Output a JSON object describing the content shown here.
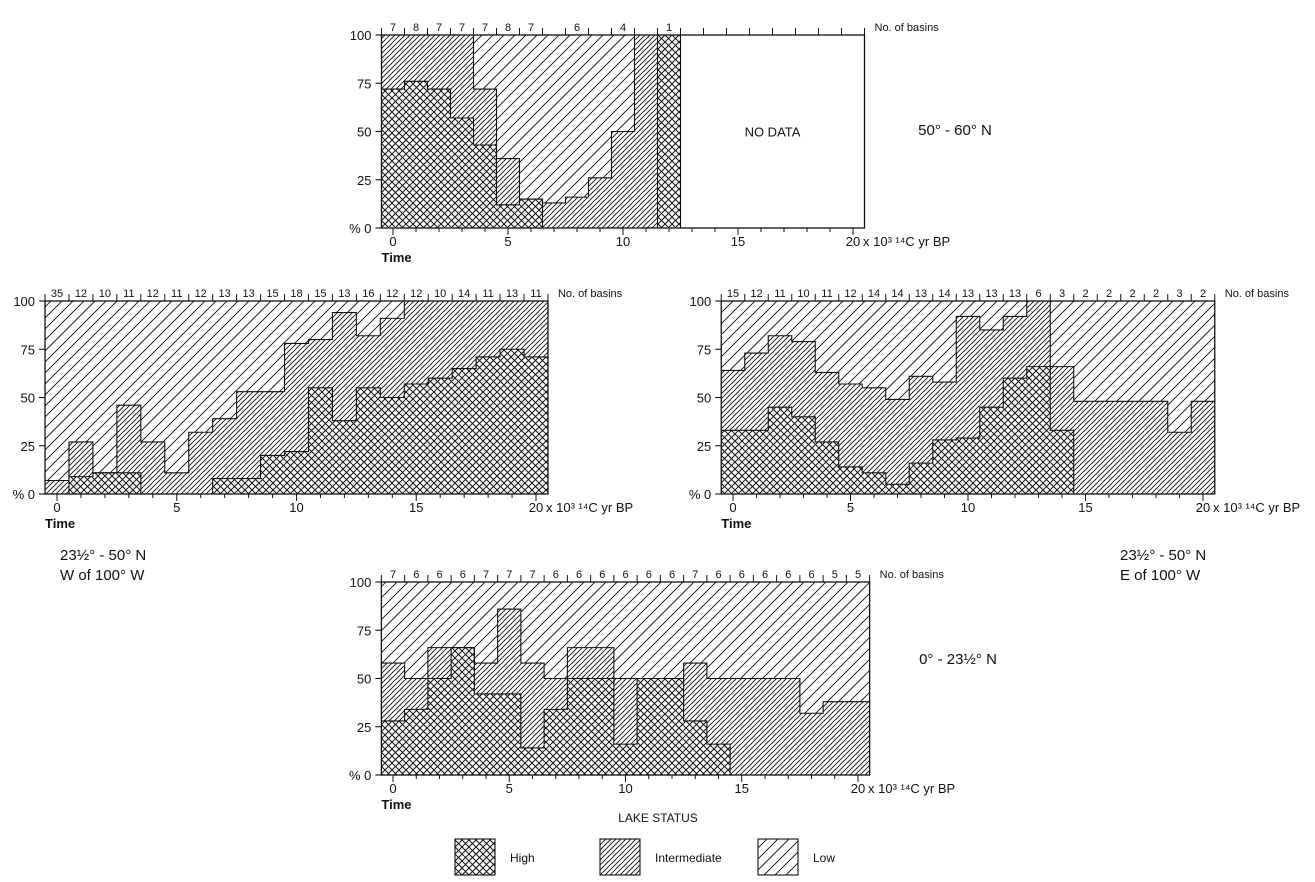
{
  "legend": {
    "title": "LAKE STATUS",
    "items": [
      {
        "name": "High",
        "pattern": "high"
      },
      {
        "name": "Intermediate",
        "pattern": "intermediate"
      },
      {
        "name": "Low",
        "pattern": "low"
      }
    ]
  },
  "chart_data": [
    {
      "type": "area",
      "region_lines": [
        "50° - 60° N"
      ],
      "top_label": "No. of basins",
      "x_unit_label": "x 10³ ¹⁴C yr BP",
      "time_label": "Time",
      "xlim": [
        0,
        20
      ],
      "ylim": [
        0,
        100
      ],
      "x_ticks": [
        0,
        5,
        10,
        15,
        20
      ],
      "y_ticks": [
        0,
        25,
        50,
        75,
        100
      ],
      "y_tick_labels": [
        "% 0",
        "25",
        "50",
        "75",
        "100"
      ],
      "no_data": {
        "from": 12.5,
        "to": 20,
        "label": "NO DATA"
      },
      "bins": [
        {
          "x0": -0.5,
          "x1": 0.5,
          "high": 72,
          "high_plus_int": 100,
          "basins": "7"
        },
        {
          "x0": 0.5,
          "x1": 1.5,
          "high": 76,
          "high_plus_int": 100,
          "basins": "8"
        },
        {
          "x0": 1.5,
          "x1": 2.5,
          "high": 72,
          "high_plus_int": 100,
          "basins": "7"
        },
        {
          "x0": 2.5,
          "x1": 3.5,
          "high": 57,
          "high_plus_int": 100,
          "basins": "7"
        },
        {
          "x0": 3.5,
          "x1": 4.5,
          "high": 43,
          "high_plus_int": 72,
          "basins": "7"
        },
        {
          "x0": 4.5,
          "x1": 5.5,
          "high": 12,
          "high_plus_int": 36,
          "basins": "8"
        },
        {
          "x0": 5.5,
          "x1": 6.5,
          "high": 15,
          "high_plus_int": 15,
          "basins": "7"
        },
        {
          "x0": 6.5,
          "x1": 7.5,
          "high": 0,
          "high_plus_int": 13,
          "basins": ""
        },
        {
          "x0": 7.5,
          "x1": 8.5,
          "high": 0,
          "high_plus_int": 16,
          "basins": "6"
        },
        {
          "x0": 8.5,
          "x1": 9.5,
          "high": 0,
          "high_plus_int": 26,
          "basins": ""
        },
        {
          "x0": 9.5,
          "x1": 10.5,
          "high": 0,
          "high_plus_int": 50,
          "basins": "4"
        },
        {
          "x0": 10.5,
          "x1": 11.5,
          "high": 0,
          "high_plus_int": 100,
          "basins": ""
        },
        {
          "x0": 11.5,
          "x1": 12.5,
          "high": 100,
          "high_plus_int": 100,
          "basins": "1"
        }
      ]
    },
    {
      "type": "area",
      "region_lines": [
        "23½° - 50° N",
        "W of 100° W"
      ],
      "top_label": "No. of basins",
      "x_unit_label": "x 10³ ¹⁴C yr BP",
      "time_label": "Time",
      "xlim": [
        0,
        20
      ],
      "ylim": [
        0,
        100
      ],
      "x_ticks": [
        0,
        5,
        10,
        15,
        20
      ],
      "y_ticks": [
        0,
        25,
        50,
        75,
        100
      ],
      "y_tick_labels": [
        "% 0",
        "25",
        "50",
        "75",
        "100"
      ],
      "bins": [
        {
          "x0": -0.5,
          "x1": 0.5,
          "high": 0,
          "high_plus_int": 7,
          "basins": "35"
        },
        {
          "x0": 0.5,
          "x1": 1.5,
          "high": 9,
          "high_plus_int": 27,
          "basins": "12"
        },
        {
          "x0": 1.5,
          "x1": 2.5,
          "high": 11,
          "high_plus_int": 11,
          "basins": "10"
        },
        {
          "x0": 2.5,
          "x1": 3.5,
          "high": 11,
          "high_plus_int": 46,
          "basins": "11"
        },
        {
          "x0": 3.5,
          "x1": 4.5,
          "high": 0,
          "high_plus_int": 27,
          "basins": "12"
        },
        {
          "x0": 4.5,
          "x1": 5.5,
          "high": 0,
          "high_plus_int": 11,
          "basins": "11"
        },
        {
          "x0": 5.5,
          "x1": 6.5,
          "high": 0,
          "high_plus_int": 32,
          "basins": "12"
        },
        {
          "x0": 6.5,
          "x1": 7.5,
          "high": 8,
          "high_plus_int": 39,
          "basins": "13"
        },
        {
          "x0": 7.5,
          "x1": 8.5,
          "high": 8,
          "high_plus_int": 53,
          "basins": "13"
        },
        {
          "x0": 8.5,
          "x1": 9.5,
          "high": 20,
          "high_plus_int": 53,
          "basins": "15"
        },
        {
          "x0": 9.5,
          "x1": 10.5,
          "high": 22,
          "high_plus_int": 78,
          "basins": "18"
        },
        {
          "x0": 10.5,
          "x1": 11.5,
          "high": 55,
          "high_plus_int": 80,
          "basins": "15"
        },
        {
          "x0": 11.5,
          "x1": 12.5,
          "high": 38,
          "high_plus_int": 94,
          "basins": "13"
        },
        {
          "x0": 12.5,
          "x1": 13.5,
          "high": 55,
          "high_plus_int": 82,
          "basins": "16"
        },
        {
          "x0": 13.5,
          "x1": 14.5,
          "high": 50,
          "high_plus_int": 91,
          "basins": "12"
        },
        {
          "x0": 14.5,
          "x1": 15.5,
          "high": 57,
          "high_plus_int": 100,
          "basins": "12"
        },
        {
          "x0": 15.5,
          "x1": 16.5,
          "high": 60,
          "high_plus_int": 100,
          "basins": "10"
        },
        {
          "x0": 16.5,
          "x1": 17.5,
          "high": 65,
          "high_plus_int": 100,
          "basins": "14"
        },
        {
          "x0": 17.5,
          "x1": 18.5,
          "high": 71,
          "high_plus_int": 100,
          "basins": "11"
        },
        {
          "x0": 18.5,
          "x1": 19.5,
          "high": 75,
          "high_plus_int": 100,
          "basins": "13"
        },
        {
          "x0": 19.5,
          "x1": 20.5,
          "high": 71,
          "high_plus_int": 100,
          "basins": "11"
        }
      ]
    },
    {
      "type": "area",
      "region_lines": [
        "23½° - 50° N",
        "E of 100° W"
      ],
      "top_label": "No. of basins",
      "x_unit_label": "x 10³ ¹⁴C yr BP",
      "time_label": "Time",
      "xlim": [
        0,
        20
      ],
      "ylim": [
        0,
        100
      ],
      "x_ticks": [
        0,
        5,
        10,
        15,
        20
      ],
      "y_ticks": [
        0,
        25,
        50,
        75,
        100
      ],
      "y_tick_labels": [
        "% 0",
        "25",
        "50",
        "75",
        "100"
      ],
      "bins": [
        {
          "x0": -0.5,
          "x1": 0.5,
          "high": 33,
          "high_plus_int": 64,
          "basins": "15"
        },
        {
          "x0": 0.5,
          "x1": 1.5,
          "high": 33,
          "high_plus_int": 73,
          "basins": "12"
        },
        {
          "x0": 1.5,
          "x1": 2.5,
          "high": 45,
          "high_plus_int": 82,
          "basins": "11"
        },
        {
          "x0": 2.5,
          "x1": 3.5,
          "high": 40,
          "high_plus_int": 79,
          "basins": "10"
        },
        {
          "x0": 3.5,
          "x1": 4.5,
          "high": 27,
          "high_plus_int": 63,
          "basins": "11"
        },
        {
          "x0": 4.5,
          "x1": 5.5,
          "high": 14,
          "high_plus_int": 57,
          "basins": "12"
        },
        {
          "x0": 5.5,
          "x1": 6.5,
          "high": 11,
          "high_plus_int": 55,
          "basins": "14"
        },
        {
          "x0": 6.5,
          "x1": 7.5,
          "high": 5,
          "high_plus_int": 49,
          "basins": "14"
        },
        {
          "x0": 7.5,
          "x1": 8.5,
          "high": 16,
          "high_plus_int": 61,
          "basins": "13"
        },
        {
          "x0": 8.5,
          "x1": 9.5,
          "high": 28,
          "high_plus_int": 58,
          "basins": "14"
        },
        {
          "x0": 9.5,
          "x1": 10.5,
          "high": 29,
          "high_plus_int": 92,
          "basins": "13"
        },
        {
          "x0": 10.5,
          "x1": 11.5,
          "high": 45,
          "high_plus_int": 85,
          "basins": "13"
        },
        {
          "x0": 11.5,
          "x1": 12.5,
          "high": 60,
          "high_plus_int": 92,
          "basins": "13"
        },
        {
          "x0": 12.5,
          "x1": 13.5,
          "high": 66,
          "high_plus_int": 100,
          "basins": "6"
        },
        {
          "x0": 13.5,
          "x1": 14.5,
          "high": 33,
          "high_plus_int": 66,
          "basins": "3"
        },
        {
          "x0": 14.5,
          "x1": 15.5,
          "high": 0,
          "high_plus_int": 48,
          "basins": "2"
        },
        {
          "x0": 15.5,
          "x1": 16.5,
          "high": 0,
          "high_plus_int": 48,
          "basins": "2"
        },
        {
          "x0": 16.5,
          "x1": 17.5,
          "high": 0,
          "high_plus_int": 48,
          "basins": "2"
        },
        {
          "x0": 17.5,
          "x1": 18.5,
          "high": 0,
          "high_plus_int": 48,
          "basins": "2"
        },
        {
          "x0": 18.5,
          "x1": 19.5,
          "high": 0,
          "high_plus_int": 32,
          "basins": "3"
        },
        {
          "x0": 19.5,
          "x1": 20.5,
          "high": 0,
          "high_plus_int": 48,
          "basins": "2"
        }
      ]
    },
    {
      "type": "area",
      "region_lines": [
        "0° - 23½° N"
      ],
      "top_label": "No. of basins",
      "x_unit_label": "x 10³ ¹⁴C yr BP",
      "time_label": "Time",
      "xlim": [
        0,
        20
      ],
      "ylim": [
        0,
        100
      ],
      "x_ticks": [
        0,
        5,
        10,
        15,
        20
      ],
      "y_ticks": [
        0,
        25,
        50,
        75,
        100
      ],
      "y_tick_labels": [
        "% 0",
        "25",
        "50",
        "75",
        "100"
      ],
      "bins": [
        {
          "x0": -0.5,
          "x1": 0.5,
          "high": 28,
          "high_plus_int": 58,
          "basins": "7"
        },
        {
          "x0": 0.5,
          "x1": 1.5,
          "high": 34,
          "high_plus_int": 50,
          "basins": "6"
        },
        {
          "x0": 1.5,
          "x1": 2.5,
          "high": 50,
          "high_plus_int": 66,
          "basins": "6"
        },
        {
          "x0": 2.5,
          "x1": 3.5,
          "high": 66,
          "high_plus_int": 66,
          "basins": "6"
        },
        {
          "x0": 3.5,
          "x1": 4.5,
          "high": 42,
          "high_plus_int": 58,
          "basins": "7"
        },
        {
          "x0": 4.5,
          "x1": 5.5,
          "high": 42,
          "high_plus_int": 86,
          "basins": "7"
        },
        {
          "x0": 5.5,
          "x1": 6.5,
          "high": 14,
          "high_plus_int": 58,
          "basins": "7"
        },
        {
          "x0": 6.5,
          "x1": 7.5,
          "high": 34,
          "high_plus_int": 50,
          "basins": "6"
        },
        {
          "x0": 7.5,
          "x1": 8.5,
          "high": 50,
          "high_plus_int": 66,
          "basins": "6"
        },
        {
          "x0": 8.5,
          "x1": 9.5,
          "high": 50,
          "high_plus_int": 66,
          "basins": "6"
        },
        {
          "x0": 9.5,
          "x1": 10.5,
          "high": 16,
          "high_plus_int": 50,
          "basins": "6"
        },
        {
          "x0": 10.5,
          "x1": 11.5,
          "high": 50,
          "high_plus_int": 50,
          "basins": "6"
        },
        {
          "x0": 11.5,
          "x1": 12.5,
          "high": 50,
          "high_plus_int": 50,
          "basins": "6"
        },
        {
          "x0": 12.5,
          "x1": 13.5,
          "high": 28,
          "high_plus_int": 58,
          "basins": "7"
        },
        {
          "x0": 13.5,
          "x1": 14.5,
          "high": 16,
          "high_plus_int": 50,
          "basins": "6"
        },
        {
          "x0": 14.5,
          "x1": 15.5,
          "high": 0,
          "high_plus_int": 50,
          "basins": "6"
        },
        {
          "x0": 15.5,
          "x1": 16.5,
          "high": 0,
          "high_plus_int": 50,
          "basins": "6"
        },
        {
          "x0": 16.5,
          "x1": 17.5,
          "high": 0,
          "high_plus_int": 50,
          "basins": "6"
        },
        {
          "x0": 17.5,
          "x1": 18.5,
          "high": 0,
          "high_plus_int": 32,
          "basins": "6"
        },
        {
          "x0": 18.5,
          "x1": 19.5,
          "high": 0,
          "high_plus_int": 38,
          "basins": "5"
        },
        {
          "x0": 19.5,
          "x1": 20.5,
          "high": 0,
          "high_plus_int": 38,
          "basins": "5"
        }
      ]
    }
  ]
}
